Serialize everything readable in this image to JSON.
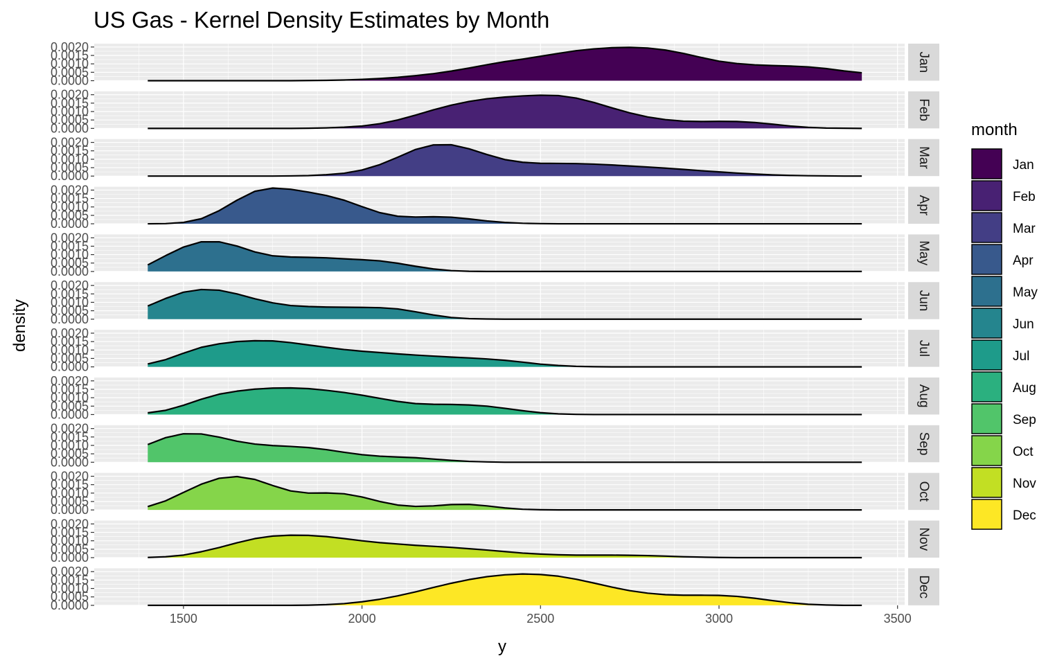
{
  "chart_data": {
    "type": "area",
    "title": "US Gas - Kernel Density Estimates by Month",
    "xlabel": "y",
    "ylabel": "density",
    "legend_title": "month",
    "legend_position": "right",
    "grid": true,
    "xlim": [
      1250,
      3520
    ],
    "ylim": [
      0,
      0.0022
    ],
    "x_ticks": [
      1500,
      2000,
      2500,
      3000,
      3500
    ],
    "y_ticks": [
      0.0,
      0.0005,
      0.001,
      0.0015,
      0.002
    ],
    "y_tick_labels": [
      "0.0000",
      "0.0005",
      "0.0010",
      "0.0015",
      "0.0020"
    ],
    "x_grid": [
      1375,
      1500,
      1625,
      1750,
      1875,
      2000,
      2125,
      2250,
      2375,
      2500,
      2625,
      2750,
      2875,
      3000,
      3125,
      3250,
      3375,
      3500
    ],
    "x": [
      1400,
      1450,
      1500,
      1550,
      1600,
      1650,
      1700,
      1750,
      1800,
      1850,
      1900,
      1950,
      2000,
      2050,
      2100,
      2150,
      2200,
      2250,
      2300,
      2350,
      2400,
      2450,
      2500,
      2550,
      2600,
      2650,
      2700,
      2750,
      2800,
      2850,
      2900,
      2950,
      3000,
      3050,
      3100,
      3150,
      3200,
      3250,
      3300,
      3350,
      3400
    ],
    "series": [
      {
        "name": "Jan",
        "color": "#440154",
        "values": [
          0,
          0,
          0,
          0,
          0,
          0,
          0,
          0,
          0,
          1e-05,
          2e-05,
          4e-05,
          8e-05,
          0.00013,
          0.0002,
          0.0003,
          0.00042,
          0.00057,
          0.00075,
          0.00095,
          0.00113,
          0.00128,
          0.00145,
          0.00162,
          0.00178,
          0.00189,
          0.00196,
          0.00198,
          0.00194,
          0.00182,
          0.00162,
          0.00138,
          0.00116,
          0.00102,
          0.00094,
          0.0009,
          0.00087,
          0.00082,
          0.00072,
          0.00058,
          0.00047
        ]
      },
      {
        "name": "Feb",
        "color": "#482173",
        "values": [
          0,
          0,
          0,
          0,
          0,
          0,
          0,
          0,
          0,
          1e-05,
          3e-05,
          7e-05,
          0.00014,
          0.00028,
          0.0005,
          0.00079,
          0.0011,
          0.00138,
          0.0016,
          0.00176,
          0.00186,
          0.00193,
          0.00197,
          0.00195,
          0.0018,
          0.00154,
          0.00122,
          0.00092,
          0.00068,
          0.00052,
          0.00043,
          0.00041,
          0.00042,
          0.00041,
          0.00035,
          0.00025,
          0.00014,
          6e-05,
          2e-05,
          1e-05,
          0
        ]
      },
      {
        "name": "Mar",
        "color": "#433E85",
        "values": [
          0,
          0,
          0,
          0,
          0,
          0,
          0,
          0,
          1e-05,
          3e-05,
          8e-05,
          0.00017,
          0.00036,
          0.00068,
          0.00112,
          0.00158,
          0.00185,
          0.00186,
          0.00162,
          0.00128,
          0.00098,
          0.00082,
          0.00076,
          0.00075,
          0.00074,
          0.00071,
          0.00066,
          0.0006,
          0.00054,
          0.00047,
          0.0004,
          0.00032,
          0.00025,
          0.00018,
          0.00012,
          7e-05,
          4e-05,
          2e-05,
          1e-05,
          0,
          0
        ]
      },
      {
        "name": "Apr",
        "color": "#38598C",
        "values": [
          0,
          1e-05,
          8e-05,
          0.0003,
          0.00078,
          0.0014,
          0.00193,
          0.00212,
          0.00205,
          0.00188,
          0.00168,
          0.0014,
          0.00102,
          0.00066,
          0.00045,
          0.0004,
          0.00042,
          0.00039,
          0.00029,
          0.00017,
          8e-05,
          3e-05,
          1e-05,
          0,
          0,
          0,
          0,
          0,
          0,
          0,
          0,
          0,
          0,
          0,
          0,
          0,
          0,
          0,
          0,
          0,
          0
        ]
      },
      {
        "name": "May",
        "color": "#2D708E",
        "values": [
          0.00039,
          0.00094,
          0.00145,
          0.00176,
          0.00176,
          0.00151,
          0.00116,
          0.00093,
          0.00086,
          0.00084,
          0.00081,
          0.00075,
          0.0007,
          0.00063,
          0.00049,
          0.00031,
          0.00015,
          5e-05,
          1e-05,
          0,
          0,
          0,
          0,
          0,
          0,
          0,
          0,
          0,
          0,
          0,
          0,
          0,
          0,
          0,
          0,
          0,
          0,
          0,
          0,
          0,
          0
        ]
      },
      {
        "name": "Jun",
        "color": "#25858E",
        "values": [
          0.00078,
          0.00123,
          0.0016,
          0.00176,
          0.00172,
          0.0015,
          0.00121,
          0.00097,
          0.00081,
          0.00075,
          0.00072,
          0.00071,
          0.0007,
          0.00068,
          0.00061,
          0.00044,
          0.00025,
          0.0001,
          3e-05,
          1e-05,
          0,
          0,
          0,
          0,
          0,
          0,
          0,
          0,
          0,
          0,
          0,
          0,
          0,
          0,
          0,
          0,
          0,
          0,
          0,
          0,
          0
        ]
      },
      {
        "name": "Jul",
        "color": "#1E9B8A",
        "values": [
          0.00017,
          0.00043,
          0.00081,
          0.00116,
          0.00137,
          0.0015,
          0.00155,
          0.00154,
          0.00144,
          0.0013,
          0.00116,
          0.00103,
          0.00093,
          0.00085,
          0.00077,
          0.0007,
          0.00064,
          0.00058,
          0.00053,
          0.00047,
          0.00039,
          0.00028,
          0.00016,
          8e-05,
          3e-05,
          1e-05,
          0,
          0,
          0,
          0,
          0,
          0,
          0,
          0,
          0,
          0,
          0,
          0,
          0,
          0,
          0
        ]
      },
      {
        "name": "Aug",
        "color": "#2BB07F",
        "values": [
          0.0001,
          0.00025,
          0.00055,
          0.00091,
          0.00121,
          0.00139,
          0.00151,
          0.00157,
          0.00158,
          0.00154,
          0.00144,
          0.00131,
          0.00115,
          0.00096,
          0.00078,
          0.00065,
          0.00061,
          0.0006,
          0.00057,
          0.0005,
          0.00037,
          0.00023,
          0.00011,
          4e-05,
          1e-05,
          0,
          0,
          0,
          0,
          0,
          0,
          0,
          0,
          0,
          0,
          0,
          0,
          0,
          0,
          0,
          0
        ]
      },
      {
        "name": "Sep",
        "color": "#51C56A",
        "values": [
          0.00105,
          0.00146,
          0.00169,
          0.00168,
          0.00149,
          0.00125,
          0.00108,
          0.00099,
          0.00094,
          0.00087,
          0.00075,
          0.00059,
          0.00045,
          0.00036,
          0.00031,
          0.00027,
          0.00019,
          0.00011,
          5e-05,
          2e-05,
          0,
          0,
          0,
          0,
          0,
          0,
          0,
          0,
          0,
          0,
          0,
          0,
          0,
          0,
          0,
          0,
          0,
          0,
          0,
          0,
          0
        ]
      },
      {
        "name": "Oct",
        "color": "#85D54A",
        "values": [
          0.0002,
          0.00054,
          0.00104,
          0.00153,
          0.00188,
          0.00198,
          0.00181,
          0.00145,
          0.00113,
          0.001,
          0.00101,
          0.00096,
          0.00077,
          0.0005,
          0.00029,
          0.00021,
          0.00024,
          0.00032,
          0.00033,
          0.00024,
          0.00012,
          4e-05,
          1e-05,
          0,
          0,
          0,
          0,
          0,
          0,
          0,
          0,
          0,
          0,
          0,
          0,
          0,
          0,
          0,
          0,
          0,
          0
        ]
      },
      {
        "name": "Nov",
        "color": "#C2DF23",
        "values": [
          1e-05,
          5e-05,
          0.00015,
          0.00035,
          0.0006,
          0.00088,
          0.00113,
          0.00128,
          0.00133,
          0.00132,
          0.00125,
          0.00113,
          0.001,
          0.00089,
          0.00081,
          0.00073,
          0.00067,
          0.00061,
          0.00053,
          0.00045,
          0.00036,
          0.00027,
          0.00021,
          0.00017,
          0.00015,
          0.00015,
          0.00015,
          0.00014,
          0.00012,
          9e-05,
          5e-05,
          3e-05,
          1e-05,
          0,
          0,
          0,
          0,
          0,
          0,
          0,
          0
        ]
      },
      {
        "name": "Dec",
        "color": "#FDE725",
        "values": [
          0,
          0,
          0,
          0,
          0,
          0,
          0,
          0,
          0,
          1e-05,
          4e-05,
          0.0001,
          0.00021,
          0.00036,
          0.00056,
          0.0008,
          0.00106,
          0.00131,
          0.00153,
          0.0017,
          0.00181,
          0.00186,
          0.00183,
          0.00173,
          0.00155,
          0.00132,
          0.00108,
          0.00087,
          0.00072,
          0.00063,
          0.0006,
          0.0006,
          0.00059,
          0.00053,
          0.00042,
          0.00028,
          0.00015,
          6e-05,
          2e-05,
          0,
          0
        ]
      }
    ]
  }
}
